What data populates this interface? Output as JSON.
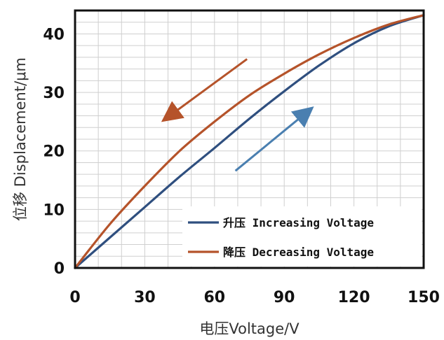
{
  "chart_data": {
    "type": "line",
    "xlabel": "电压Voltage/V",
    "ylabel": "位移 Displacement/μm",
    "xlim": [
      0,
      150
    ],
    "ylim": [
      0,
      44
    ],
    "x_ticks": [
      "0",
      "30",
      "60",
      "90",
      "120",
      "150"
    ],
    "y_ticks": [
      "0",
      "10",
      "20",
      "30",
      "40"
    ],
    "grid": true,
    "legend_position": "bottom-right",
    "series": [
      {
        "name": "升压 Increasing Voltage",
        "color": "#2f4f7f",
        "x": [
          0,
          15,
          30,
          45,
          60,
          75,
          90,
          105,
          120,
          135,
          150
        ],
        "y": [
          0,
          5.2,
          10.4,
          15.6,
          20.5,
          25.5,
          30.2,
          34.6,
          38.4,
          41.3,
          43.2
        ]
      },
      {
        "name": "降压 Decreasing Voltage",
        "color": "#b5532a",
        "x": [
          0,
          15,
          30,
          45,
          60,
          75,
          90,
          105,
          120,
          135,
          150
        ],
        "y": [
          0,
          7.5,
          14.0,
          20.0,
          25.0,
          29.5,
          33.2,
          36.5,
          39.3,
          41.6,
          43.2
        ]
      }
    ],
    "annotations": [
      {
        "type": "arrow",
        "meaning": "decreasing-direction",
        "color": "#b5532a",
        "from": [
          74,
          35.7
        ],
        "to": [
          40,
          25.8
        ]
      },
      {
        "type": "arrow",
        "meaning": "increasing-direction",
        "color": "#4a7fb0",
        "from": [
          69,
          16.6
        ],
        "to": [
          100,
          26.7
        ]
      }
    ]
  }
}
